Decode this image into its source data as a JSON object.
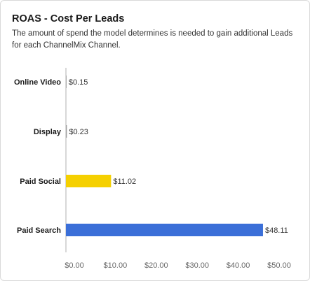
{
  "chart_data": {
    "type": "bar",
    "orientation": "horizontal",
    "title": "ROAS - Cost Per Leads",
    "subtitle": "The amount of spend the model determines is needed to gain additional Leads for each ChannelMix Channel.",
    "categories": [
      "Online Video",
      "Display",
      "Paid Social",
      "Paid Search"
    ],
    "values": [
      0.15,
      0.23,
      11.02,
      48.11
    ],
    "value_labels": [
      "$0.15",
      "$0.23",
      "$11.02",
      "$48.11"
    ],
    "bar_colors": [
      "#9e9e9e",
      "#9e9e9e",
      "#f5d000",
      "#3b6fd8"
    ],
    "xlim": [
      0,
      50
    ],
    "x_ticks": [
      0,
      10,
      20,
      30,
      40,
      50
    ],
    "x_tick_labels": [
      "$0.00",
      "$10.00",
      "$20.00",
      "$30.00",
      "$40.00",
      "$50.00"
    ],
    "grid": false
  }
}
